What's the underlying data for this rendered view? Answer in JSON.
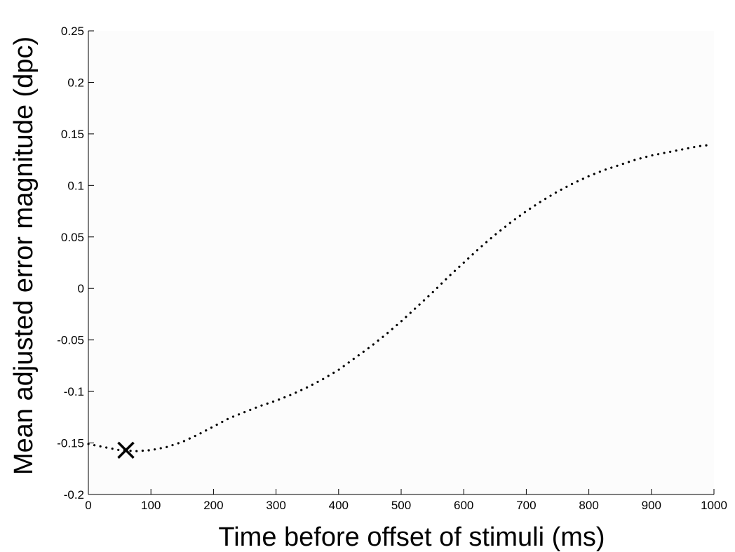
{
  "chart_data": {
    "type": "line",
    "title": "",
    "xlabel": "Time before offset of stimuli (ms)",
    "ylabel": "Mean adjusted error magnitude (dpc)",
    "xlim": [
      0,
      1000
    ],
    "ylim": [
      -0.2,
      0.25
    ],
    "xticks": [
      0,
      100,
      200,
      300,
      400,
      500,
      600,
      700,
      800,
      900,
      1000
    ],
    "xtick_labels": [
      "0",
      "100",
      "200",
      "300",
      "400",
      "500",
      "600",
      "700",
      "800",
      "900",
      "1000"
    ],
    "yticks": [
      -0.2,
      -0.15,
      -0.1,
      -0.05,
      0,
      0.05,
      0.1,
      0.15,
      0.2,
      0.25
    ],
    "ytick_labels": [
      "-0.2",
      "-0.15",
      "-0.1",
      "-0.05",
      "0",
      "0.05",
      "0.1",
      "0.15",
      "0.2",
      "0.25"
    ],
    "grid": false,
    "line_style": "dotted",
    "line_color": "#000000",
    "background_color": "#fcfcfc",
    "series": [
      {
        "x": [
          0,
          25,
          50,
          75,
          100,
          125,
          150,
          175,
          200,
          225,
          250,
          275,
          300,
          325,
          350,
          375,
          400,
          425,
          450,
          475,
          500,
          525,
          550,
          575,
          600,
          625,
          650,
          675,
          700,
          725,
          750,
          775,
          800,
          825,
          850,
          875,
          900,
          925,
          950,
          975,
          990
        ],
        "y": [
          -0.151,
          -0.154,
          -0.157,
          -0.158,
          -0.157,
          -0.154,
          -0.149,
          -0.142,
          -0.134,
          -0.126,
          -0.12,
          -0.114,
          -0.109,
          -0.103,
          -0.096,
          -0.088,
          -0.079,
          -0.068,
          -0.057,
          -0.045,
          -0.032,
          -0.018,
          -0.004,
          0.011,
          0.025,
          0.039,
          0.052,
          0.064,
          0.075,
          0.085,
          0.094,
          0.102,
          0.109,
          0.115,
          0.12,
          0.125,
          0.129,
          0.132,
          0.135,
          0.138,
          0.139
        ]
      }
    ],
    "marker": {
      "x": 60,
      "y": -0.157,
      "symbol": "x",
      "color": "#000000"
    }
  }
}
